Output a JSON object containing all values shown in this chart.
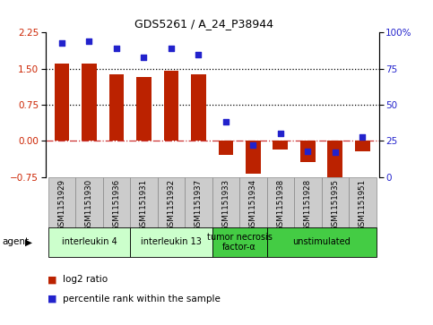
{
  "title": "GDS5261 / A_24_P38944",
  "samples": [
    "GSM1151929",
    "GSM1151930",
    "GSM1151936",
    "GSM1151931",
    "GSM1151932",
    "GSM1151937",
    "GSM1151933",
    "GSM1151934",
    "GSM1151938",
    "GSM1151928",
    "GSM1151935",
    "GSM1151951"
  ],
  "log2_ratio": [
    1.6,
    1.6,
    1.38,
    1.33,
    1.45,
    1.38,
    -0.28,
    -0.68,
    -0.18,
    -0.43,
    -0.82,
    -0.22
  ],
  "percentile": [
    93,
    94,
    89,
    83,
    89,
    85,
    38,
    22,
    30,
    18,
    17,
    28
  ],
  "bar_color": "#bb2200",
  "dot_color": "#2222cc",
  "ylim_left": [
    -0.75,
    2.25
  ],
  "ylim_right": [
    0,
    100
  ],
  "yticks_left": [
    -0.75,
    0,
    0.75,
    1.5,
    2.25
  ],
  "yticks_right": [
    0,
    25,
    50,
    75,
    100
  ],
  "hlines": [
    0,
    0.75,
    1.5
  ],
  "hline_styles": [
    "dashdot",
    "dotted",
    "dotted"
  ],
  "hline_colors": [
    "#cc3333",
    "#000000",
    "#000000"
  ],
  "agent_groups": [
    {
      "label": "interleukin 4",
      "indices": [
        0,
        1,
        2
      ],
      "color": "#ccffcc"
    },
    {
      "label": "interleukin 13",
      "indices": [
        3,
        4,
        5
      ],
      "color": "#ccffcc"
    },
    {
      "label": "tumor necrosis\nfactor-α",
      "indices": [
        6,
        7
      ],
      "color": "#44cc44"
    },
    {
      "label": "unstimulated",
      "indices": [
        8,
        9,
        10,
        11
      ],
      "color": "#44cc44"
    }
  ],
  "legend_items": [
    {
      "label": "log2 ratio",
      "color": "#bb2200"
    },
    {
      "label": "percentile rank within the sample",
      "color": "#2222cc"
    }
  ],
  "agent_label": "agent",
  "background_color": "#ffffff",
  "plot_bg_color": "#ffffff",
  "tick_label_color_left": "#cc2200",
  "tick_label_color_right": "#2222cc",
  "bar_width": 0.55,
  "sample_box_color": "#cccccc"
}
